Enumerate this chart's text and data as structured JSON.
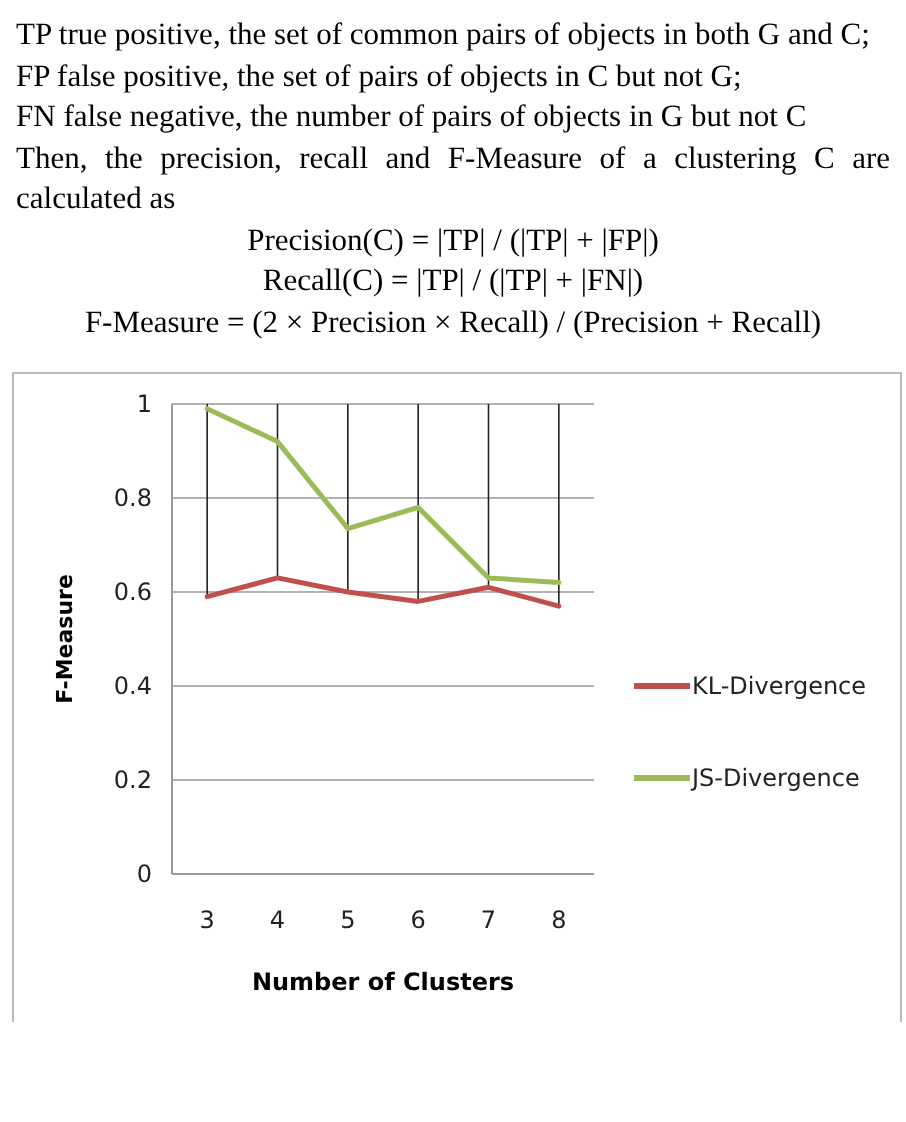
{
  "chart_data": {
    "type": "line",
    "xlabel": "Number of Clusters",
    "ylabel": "F-Measure",
    "annotations": [
      "TP true positive, the set of common pairs of objects in both G and C;",
      "FP false positive, the set of pairs of objects in C but not G;",
      "FN false negative, the number of pairs of objects in G but not C",
      "Then, the precision, recall and F-Measure of a clustering C are calculated as",
      "Precision(C) = |TP| / (|TP| + |FP|)",
      "Recall(C) = |TP| / (|TP| + |FN|)",
      "F-Measure = (2 × Precision × Recall) / (Precision + Recall)"
    ],
    "categories": [
      "3",
      "4",
      "5",
      "6",
      "7",
      "8"
    ],
    "series": [
      {
        "name": "KL-Divergence",
        "color": "#c0504d",
        "values": [
          0.59,
          0.63,
          0.6,
          0.58,
          0.61,
          0.57
        ]
      },
      {
        "name": "JS-Divergence",
        "color": "#9bbb59",
        "values": [
          0.99,
          0.92,
          0.735,
          0.78,
          0.63,
          0.62
        ]
      }
    ],
    "ylim": [
      0,
      1
    ],
    "yticks": [
      0,
      0.2,
      0.4,
      0.6,
      0.8,
      1
    ],
    "grid": true,
    "legend": "right",
    "marker": "none",
    "line_style": "solid"
  }
}
